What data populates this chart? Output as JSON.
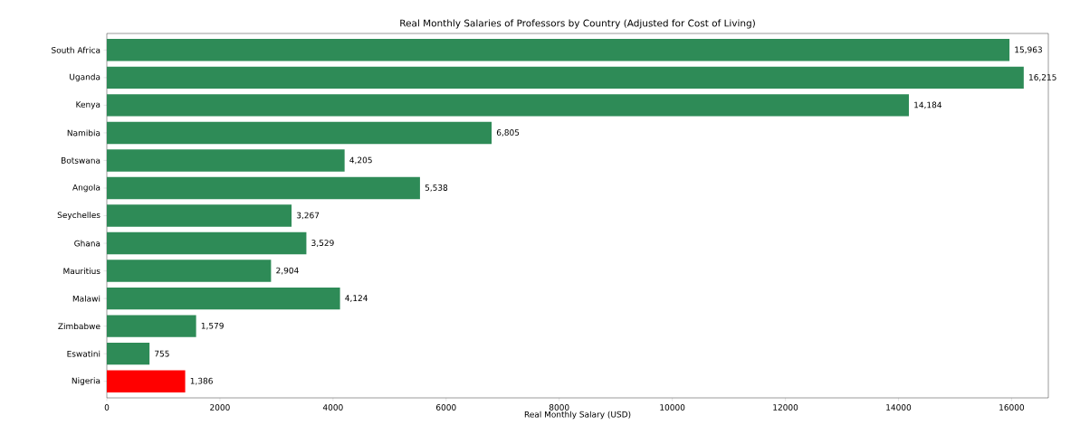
{
  "chart_data": {
    "type": "bar",
    "orientation": "horizontal",
    "title": "Real Monthly Salaries of Professors by Country (Adjusted for Cost of Living)",
    "xlabel": "Real Monthly Salary (USD)",
    "categories": [
      "South Africa",
      "Uganda",
      "Kenya",
      "Namibia",
      "Botswana",
      "Angola",
      "Seychelles",
      "Ghana",
      "Mauritius",
      "Malawi",
      "Zimbabwe",
      "Eswatini",
      "Nigeria"
    ],
    "values": [
      15963,
      16215,
      14184,
      6805,
      4205,
      5538,
      3267,
      3529,
      2904,
      4124,
      1579,
      755,
      1386
    ],
    "value_labels": [
      "15,963",
      "16,215",
      "14,184",
      "6,805",
      "4,205",
      "5,538",
      "3,267",
      "3,529",
      "2,904",
      "4,124",
      "1,579",
      "755",
      "1,386"
    ],
    "colors": [
      "#2e8b57",
      "#2e8b57",
      "#2e8b57",
      "#2e8b57",
      "#2e8b57",
      "#2e8b57",
      "#2e8b57",
      "#2e8b57",
      "#2e8b57",
      "#2e8b57",
      "#2e8b57",
      "#2e8b57",
      "#ff0000"
    ],
    "xlim": [
      0,
      16650
    ],
    "xticks": [
      0,
      2000,
      4000,
      6000,
      8000,
      10000,
      12000,
      14000,
      16000
    ]
  }
}
